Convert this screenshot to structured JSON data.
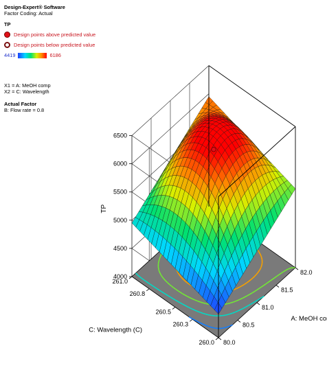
{
  "header": {
    "software": "Design-Expert® Software",
    "coding": "Factor Coding: Actual",
    "response": "TP",
    "above": "Design points above predicted value",
    "below": "Design points below predicted value",
    "scale_min": "4419",
    "scale_max": "6186",
    "x1": "X1 = A: MeOH comp",
    "x2": "X2 = C: Wavelength",
    "actual_factor_title": "Actual Factor",
    "actual_factor": "B: Flow rate = 0.8"
  },
  "chart_data": {
    "type": "surface",
    "zlabel": "TP",
    "xlabel": "A: MeOH comp (%)",
    "ylabel": "C: Wavelength (C)",
    "x_range": [
      80.0,
      82.0
    ],
    "y_range": [
      260.0,
      261.0
    ],
    "z_range": [
      4000,
      6500
    ],
    "x_ticks": [
      "80.0",
      "80.5",
      "81.0",
      "81.5",
      "82.0"
    ],
    "y_ticks": [
      "260.0",
      "260.3",
      "260.5",
      "260.8",
      "261.0"
    ],
    "z_ticks": [
      "4000",
      "4500",
      "5000",
      "5500",
      "6000",
      "6500"
    ],
    "z_color_range": [
      4419,
      6186
    ],
    "corners": {
      "x80_y260": 4419,
      "x82_y260": 5400,
      "x80_y261": 4950,
      "x82_y261": 5950
    },
    "peak": {
      "x": 81.2,
      "y": 260.75,
      "z": 6186
    },
    "contour_levels": [
      4600,
      5000,
      5400,
      5800
    ],
    "design_points_above": [
      {
        "x": 81.0,
        "y": 260.5,
        "z": 6150
      }
    ],
    "colors": {
      "above": "#e01018",
      "below_edge": "#7a1010",
      "floor": "#7a7a7a"
    }
  }
}
